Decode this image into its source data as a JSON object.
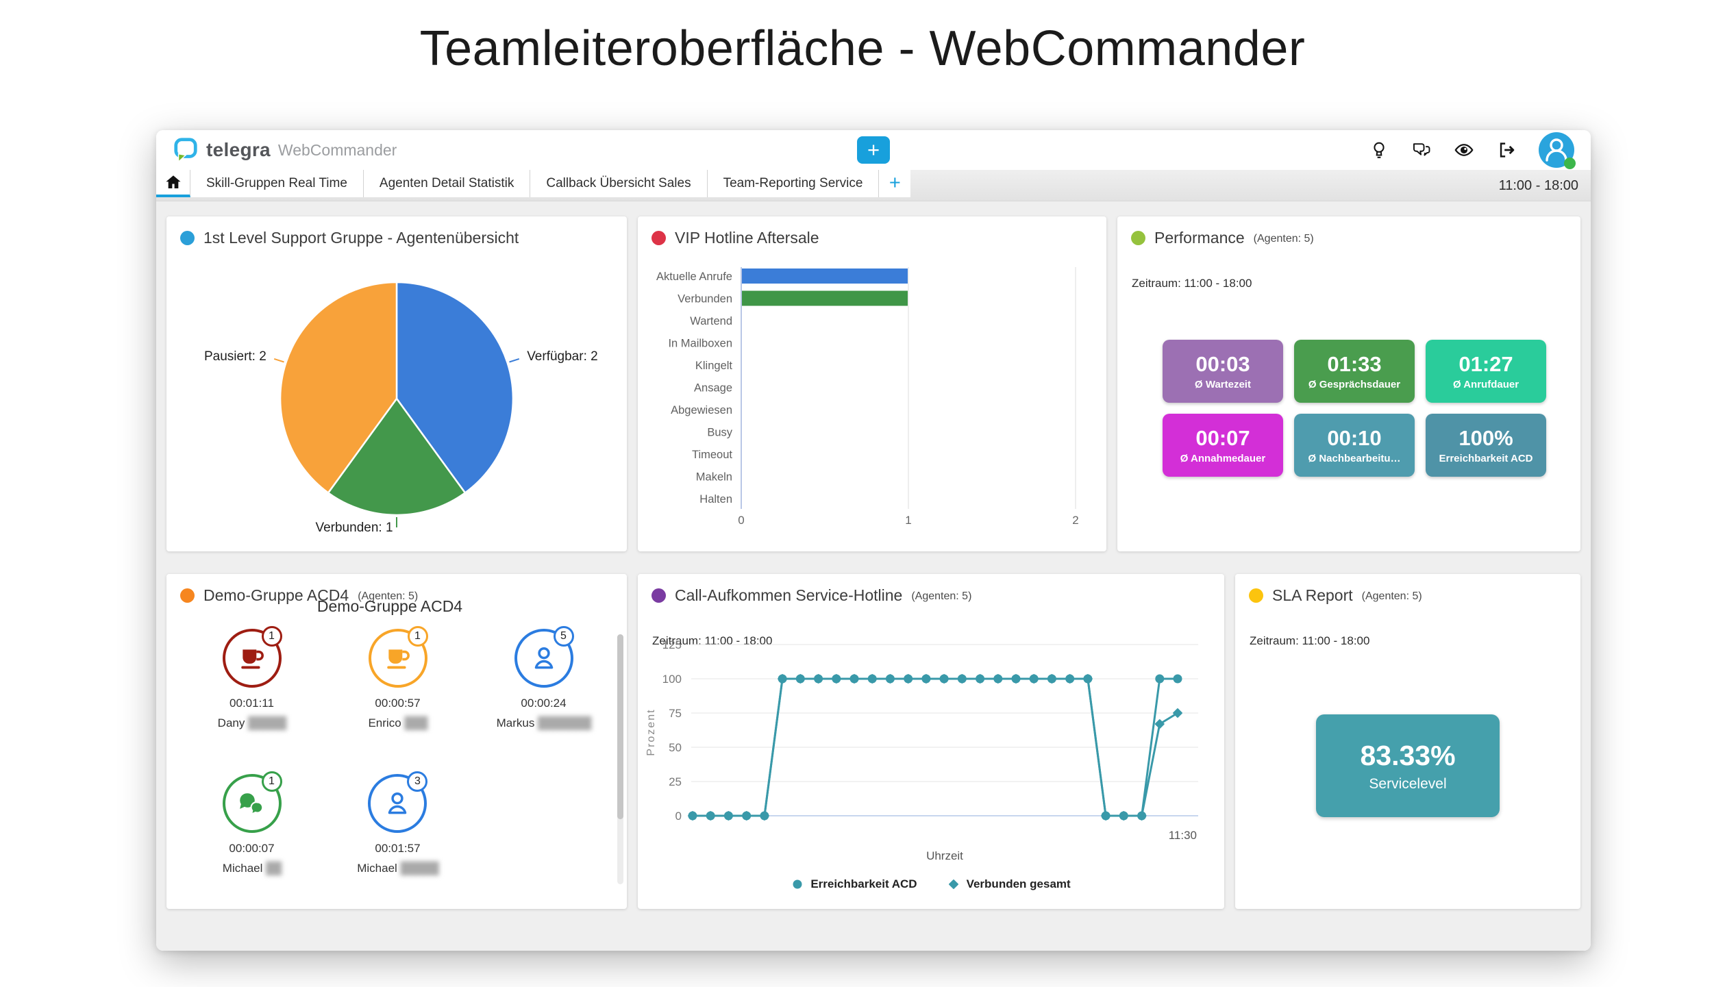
{
  "page_title": "Teamleiteroberfläche - WebCommander",
  "window": {
    "brand": {
      "name": "telegra",
      "product": "WebCommander"
    },
    "add_button_label": "+",
    "add_tab_label": "+",
    "time_range": "11:00 - 18:00",
    "accent_blue": "#18a0dc",
    "header_icons": [
      "lightbulb-icon",
      "conversation-icon",
      "eye-icon",
      "logout-icon",
      "user-avatar"
    ],
    "tabs": [
      {
        "icon": "home",
        "label": ""
      },
      {
        "label": "Skill-Gruppen Real Time"
      },
      {
        "label": "Agenten Detail Statistik"
      },
      {
        "label": "Callback Übersicht Sales"
      },
      {
        "label": "Team-Reporting Service"
      }
    ]
  },
  "panels": {
    "agent_overview": {
      "dot_color": "#2b9fd8",
      "title": "1st Level Support Gruppe - Agentenübersicht",
      "chart_data": {
        "type": "pie",
        "start_angle": "top",
        "direction": "clockwise",
        "slices": [
          {
            "name": "Verfügbar",
            "label": "Verfügbar: 2",
            "value": 2,
            "color": "#3b7dd8"
          },
          {
            "name": "Verbunden",
            "label": "Verbunden: 1",
            "value": 1,
            "color": "#43984b"
          },
          {
            "name": "Pausiert",
            "label": "Pausiert: 2",
            "value": 2,
            "color": "#f8a23a"
          }
        ]
      }
    },
    "vip_hotline": {
      "dot_color": "#dd3347",
      "title": "VIP Hotline Aftersale",
      "chart_data": {
        "type": "bar",
        "orientation": "horizontal",
        "categories": [
          "Aktuelle Anrufe",
          "Verbunden",
          "Wartend",
          "In Mailboxen",
          "Klingelt",
          "Ansage",
          "Abgewiesen",
          "Busy",
          "Timeout",
          "Makeln",
          "Halten"
        ],
        "values": [
          1,
          1,
          0,
          0,
          0,
          0,
          0,
          0,
          0,
          0,
          0
        ],
        "bar_colors": [
          "#3b7dd8",
          "#3f9647",
          null,
          null,
          null,
          null,
          null,
          null,
          null,
          null,
          null
        ],
        "xlim": [
          0,
          2
        ],
        "xticks": [
          0,
          1,
          2
        ]
      }
    },
    "performance": {
      "dot_color": "#95c23d",
      "title": "Performance",
      "agents_suffix": "(Agenten: 5)",
      "zeitraum": "Zeitraum: 11:00 - 18:00",
      "tiles": [
        {
          "value": "00:03",
          "label": "Ø Wartezeit",
          "color": "#9c70b3"
        },
        {
          "value": "01:33",
          "label": "Ø Gesprächsdauer",
          "color": "#4a9d4e"
        },
        {
          "value": "01:27",
          "label": "Ø Anrufdauer",
          "color": "#2acc9b"
        },
        {
          "value": "00:07",
          "label": "Ø Annahmedauer",
          "color": "#d32fd7"
        },
        {
          "value": "00:10",
          "label": "Ø Nachbearbeitu…",
          "color": "#4f9cae"
        },
        {
          "value": "100%",
          "label": "Erreichbarkeit ACD",
          "color": "#4f93a7"
        }
      ]
    },
    "demo_gruppe": {
      "dot_color": "#f6861f",
      "title": "Demo-Gruppe ACD4",
      "agents_suffix": "(Agenten: 5)",
      "inner_title": "Demo-Gruppe ACD4",
      "agents": [
        {
          "icon": "coffee",
          "color": "#9e1d12",
          "badge": "1",
          "time": "00:01:11",
          "first_name": "Dany",
          "surname_redacted": "█████"
        },
        {
          "icon": "coffee",
          "color": "#f8a528",
          "badge": "1",
          "time": "00:00:57",
          "first_name": "Enrico",
          "surname_redacted": "███"
        },
        {
          "icon": "user",
          "color": "#2b7ce0",
          "badge": "5",
          "time": "00:00:24",
          "first_name": "Markus",
          "surname_redacted": "███████"
        },
        {
          "icon": "chat",
          "color": "#37a04a",
          "badge": "1",
          "time": "00:00:07",
          "first_name": "Michael",
          "surname_redacted": "██"
        },
        {
          "icon": "user",
          "color": "#2b7ce0",
          "badge": "3",
          "time": "00:01:57",
          "first_name": "Michael",
          "surname_redacted": "█████"
        }
      ]
    },
    "call_volume": {
      "dot_color": "#7a3ba1",
      "title": "Call-Aufkommen Service-Hotline",
      "agents_suffix": "(Agenten: 5)",
      "zeitraum": "Zeitraum: 11:00 - 18:00",
      "chart_data": {
        "type": "line",
        "ylabel": "Prozent",
        "xlabel": "Uhrzeit",
        "ylim": [
          0,
          125
        ],
        "yticks": [
          0,
          25,
          50,
          75,
          100,
          125
        ],
        "visible_x_tick": "11:30",
        "line_color": "#3999a9",
        "series": [
          {
            "name": "Erreichbarkeit ACD",
            "marker": "circle",
            "values": [
              0,
              0,
              0,
              0,
              0,
              100,
              100,
              100,
              100,
              100,
              100,
              100,
              100,
              100,
              100,
              100,
              100,
              100,
              100,
              100,
              100,
              100,
              100,
              0,
              0,
              0,
              100,
              100
            ]
          },
          {
            "name": "Verbunden gesamt",
            "marker": "diamond",
            "values": [
              0,
              0,
              0,
              0,
              0,
              100,
              100,
              100,
              100,
              100,
              100,
              100,
              100,
              100,
              100,
              100,
              100,
              100,
              100,
              100,
              100,
              100,
              100,
              0,
              0,
              0,
              67,
              75
            ]
          }
        ]
      }
    },
    "sla_report": {
      "dot_color": "#fcc40e",
      "title": "SLA Report",
      "agents_suffix": "(Agenten: 5)",
      "zeitraum": "Zeitraum: 11:00 - 18:00",
      "tile": {
        "value": "83.33%",
        "label": "Servicelevel",
        "color": "#45a0ac"
      }
    }
  }
}
